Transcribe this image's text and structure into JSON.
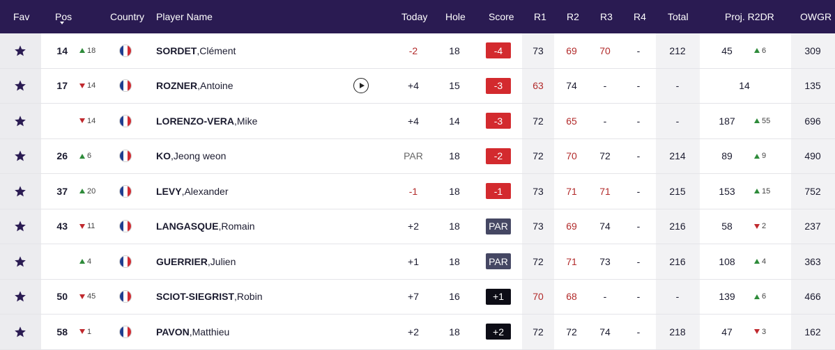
{
  "headers": {
    "fav": "Fav",
    "pos": "Pos",
    "country": "Country",
    "player": "Player Name",
    "today": "Today",
    "hole": "Hole",
    "score": "Score",
    "r1": "R1",
    "r2": "R2",
    "r3": "R3",
    "r4": "R4",
    "total": "Total",
    "proj": "Proj. R2DR",
    "owgr": "OWGR"
  },
  "colors": {
    "header_bg": "#2a1b52",
    "under_par": "#d32a2e",
    "par": "#454763",
    "over_par": "#0d0d16",
    "up": "#2e8b3a",
    "down": "#c0292e"
  },
  "rows": [
    {
      "pos": "14",
      "move_dir": "up",
      "move": "18",
      "last": "SORDET",
      "first": "Clément",
      "play": false,
      "today": "-2",
      "today_red": true,
      "hole": "18",
      "score": "-4",
      "score_type": "under",
      "r1": "73",
      "r1_red": false,
      "r2": "69",
      "r2_red": true,
      "r3": "70",
      "r3_red": true,
      "r4": "-",
      "total": "212",
      "proj": "45",
      "proj_dir": "up",
      "proj_move": "6",
      "proj_center": "",
      "owgr": "309"
    },
    {
      "pos": "17",
      "move_dir": "down",
      "move": "14",
      "last": "ROZNER",
      "first": "Antoine",
      "play": true,
      "today": "+4",
      "today_red": false,
      "hole": "15",
      "score": "-3",
      "score_type": "under",
      "r1": "63",
      "r1_red": true,
      "r2": "74",
      "r2_red": false,
      "r3": "-",
      "r3_red": false,
      "r4": "-",
      "total": "-",
      "proj": "",
      "proj_dir": "",
      "proj_move": "",
      "proj_center": "14",
      "owgr": "135"
    },
    {
      "pos": "",
      "move_dir": "down",
      "move": "14",
      "last": "LORENZO-VERA",
      "first": "Mike",
      "play": false,
      "today": "+4",
      "today_red": false,
      "hole": "14",
      "score": "-3",
      "score_type": "under",
      "r1": "72",
      "r1_red": false,
      "r2": "65",
      "r2_red": true,
      "r3": "-",
      "r3_red": false,
      "r4": "-",
      "total": "-",
      "proj": "187",
      "proj_dir": "up",
      "proj_move": "55",
      "proj_center": "",
      "owgr": "696"
    },
    {
      "pos": "26",
      "move_dir": "up",
      "move": "6",
      "last": "KO",
      "first": "Jeong weon",
      "play": false,
      "today": "PAR",
      "today_red": false,
      "today_grey": true,
      "hole": "18",
      "score": "-2",
      "score_type": "under",
      "r1": "72",
      "r1_red": false,
      "r2": "70",
      "r2_red": true,
      "r3": "72",
      "r3_red": false,
      "r4": "-",
      "total": "214",
      "proj": "89",
      "proj_dir": "up",
      "proj_move": "9",
      "proj_center": "",
      "owgr": "490"
    },
    {
      "pos": "37",
      "move_dir": "up",
      "move": "20",
      "last": "LEVY",
      "first": "Alexander",
      "play": false,
      "today": "-1",
      "today_red": true,
      "hole": "18",
      "score": "-1",
      "score_type": "under",
      "r1": "73",
      "r1_red": false,
      "r2": "71",
      "r2_red": true,
      "r3": "71",
      "r3_red": true,
      "r4": "-",
      "total": "215",
      "proj": "153",
      "proj_dir": "up",
      "proj_move": "15",
      "proj_center": "",
      "owgr": "752"
    },
    {
      "pos": "43",
      "move_dir": "down",
      "move": "11",
      "last": "LANGASQUE",
      "first": "Romain",
      "play": false,
      "today": "+2",
      "today_red": false,
      "hole": "18",
      "score": "PAR",
      "score_type": "par",
      "r1": "73",
      "r1_red": false,
      "r2": "69",
      "r2_red": true,
      "r3": "74",
      "r3_red": false,
      "r4": "-",
      "total": "216",
      "proj": "58",
      "proj_dir": "down",
      "proj_move": "2",
      "proj_center": "",
      "owgr": "237"
    },
    {
      "pos": "",
      "move_dir": "up",
      "move": "4",
      "last": "GUERRIER",
      "first": "Julien",
      "play": false,
      "today": "+1",
      "today_red": false,
      "hole": "18",
      "score": "PAR",
      "score_type": "par",
      "r1": "72",
      "r1_red": false,
      "r2": "71",
      "r2_red": true,
      "r3": "73",
      "r3_red": false,
      "r4": "-",
      "total": "216",
      "proj": "108",
      "proj_dir": "up",
      "proj_move": "4",
      "proj_center": "",
      "owgr": "363"
    },
    {
      "pos": "50",
      "move_dir": "down",
      "move": "45",
      "last": "SCIOT-SIEGRIST",
      "first": "Robin",
      "play": false,
      "today": "+7",
      "today_red": false,
      "hole": "16",
      "score": "+1",
      "score_type": "over",
      "r1": "70",
      "r1_red": true,
      "r2": "68",
      "r2_red": true,
      "r3": "-",
      "r3_red": false,
      "r4": "-",
      "total": "-",
      "proj": "139",
      "proj_dir": "up",
      "proj_move": "6",
      "proj_center": "",
      "owgr": "466"
    },
    {
      "pos": "58",
      "move_dir": "down",
      "move": "1",
      "last": "PAVON",
      "first": "Matthieu",
      "play": false,
      "today": "+2",
      "today_red": false,
      "hole": "18",
      "score": "+2",
      "score_type": "over",
      "r1": "72",
      "r1_red": false,
      "r2": "72",
      "r2_red": false,
      "r3": "74",
      "r3_red": false,
      "r4": "-",
      "total": "218",
      "proj": "47",
      "proj_dir": "down",
      "proj_move": "3",
      "proj_center": "",
      "owgr": "162"
    }
  ]
}
